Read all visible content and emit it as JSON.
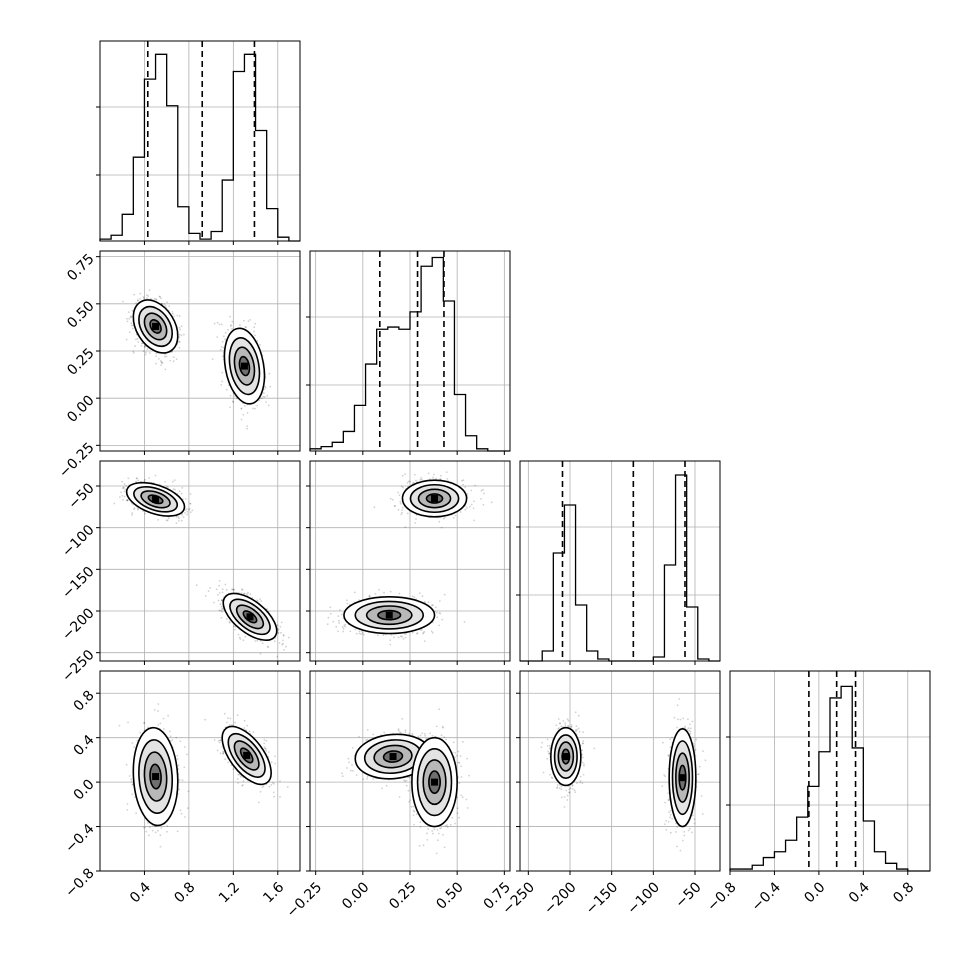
{
  "chart_data": {
    "type": "corner",
    "grid": true,
    "params": [
      {
        "range": [
          0.0,
          1.8
        ],
        "ticks": [
          0.4,
          0.8,
          1.2,
          1.6
        ],
        "tick_labels": [
          "0.4",
          "0.8",
          "1.2",
          "1.6"
        ]
      },
      {
        "range": [
          -0.28,
          0.78
        ],
        "ticks": [
          -0.25,
          0.0,
          0.25,
          0.5,
          0.75
        ],
        "tick_labels": [
          "−0.25",
          "0.00",
          "0.25",
          "0.50",
          "0.75"
        ]
      },
      {
        "range": [
          -260,
          -20
        ],
        "ticks": [
          -250,
          -200,
          -150,
          -100,
          -50
        ],
        "tick_labels": [
          "−250",
          "−200",
          "−150",
          "−100",
          "−50"
        ]
      },
      {
        "range": [
          -0.8,
          1.0
        ],
        "ticks": [
          -0.8,
          -0.4,
          0.0,
          0.4,
          0.8
        ],
        "tick_labels": [
          "−0.8",
          "−0.4",
          "0.0",
          "0.4",
          "0.8"
        ]
      }
    ],
    "histograms": [
      {
        "param": 0,
        "bin_edges_range": [
          0.0,
          1.8
        ],
        "counts": [
          1,
          3,
          14,
          44,
          85,
          98,
          71,
          18,
          4,
          1,
          5,
          32,
          89,
          98,
          58,
          17,
          2,
          0
        ],
        "quantile_lines": [
          0.43,
          0.92,
          1.39
        ],
        "max_count": 105
      },
      {
        "param": 1,
        "bin_edges_range": [
          -0.28,
          0.78
        ],
        "counts": [
          1,
          2,
          4,
          9,
          21,
          40,
          56,
          57,
          56,
          64,
          85,
          89,
          69,
          26,
          7,
          1,
          0,
          0
        ],
        "quantile_lines": [
          0.09,
          0.29,
          0.43
        ],
        "max_count": 92
      },
      {
        "param": 2,
        "bin_edges_range": [
          -260,
          -20
        ],
        "counts": [
          0,
          0,
          5,
          54,
          78,
          28,
          5,
          1,
          0,
          0,
          0,
          0,
          2,
          48,
          93,
          27,
          1,
          0
        ],
        "quantile_lines": [
          -209,
          -124,
          -62
        ],
        "max_count": 100
      },
      {
        "param": 3,
        "bin_edges_range": [
          -0.8,
          1.0
        ],
        "counts": [
          1,
          1,
          3,
          7,
          10,
          16,
          28,
          44,
          62,
          90,
          96,
          64,
          26,
          10,
          4,
          1,
          0,
          0
        ],
        "quantile_lines": [
          -0.09,
          0.16,
          0.33
        ],
        "max_count": 104
      }
    ],
    "scatter_panels": [
      {
        "x": 0,
        "y": 1,
        "clusters": [
          {
            "cx": 0.5,
            "cy": 0.38,
            "sx": 0.1,
            "sy": 0.07,
            "rho": -0.35,
            "n": 700
          },
          {
            "cx": 1.3,
            "cy": 0.17,
            "sx": 0.09,
            "sy": 0.1,
            "rho": -0.25,
            "n": 700
          }
        ]
      },
      {
        "x": 0,
        "y": 2,
        "clusters": [
          {
            "cx": 0.5,
            "cy": -66,
            "sx": 0.13,
            "sy": 10,
            "rho": -0.45,
            "n": 700
          },
          {
            "cx": 1.35,
            "cy": -207,
            "sx": 0.12,
            "sy": 14,
            "rho": -0.6,
            "n": 700
          }
        ]
      },
      {
        "x": 0,
        "y": 3,
        "clusters": [
          {
            "cx": 0.5,
            "cy": 0.05,
            "sx": 0.1,
            "sy": 0.22,
            "rho": -0.1,
            "n": 700
          },
          {
            "cx": 1.32,
            "cy": 0.24,
            "sx": 0.11,
            "sy": 0.13,
            "rho": -0.6,
            "n": 700
          }
        ]
      },
      {
        "x": 1,
        "y": 2,
        "clusters": [
          {
            "cx": 0.38,
            "cy": -65,
            "sx": 0.085,
            "sy": 11,
            "rho": 0.0,
            "n": 700
          },
          {
            "cx": 0.14,
            "cy": -205,
            "sx": 0.12,
            "sy": 11,
            "rho": 0.0,
            "n": 700
          }
        ]
      },
      {
        "x": 1,
        "y": 3,
        "clusters": [
          {
            "cx": 0.16,
            "cy": 0.23,
            "sx": 0.1,
            "sy": 0.1,
            "rho": 0.1,
            "n": 700
          },
          {
            "cx": 0.38,
            "cy": 0.0,
            "sx": 0.06,
            "sy": 0.2,
            "rho": 0.0,
            "n": 700
          }
        ]
      },
      {
        "x": 2,
        "y": 3,
        "clusters": [
          {
            "cx": -205,
            "cy": 0.23,
            "sx": 9,
            "sy": 0.13,
            "rho": 0.0,
            "n": 700
          },
          {
            "cx": -65,
            "cy": 0.04,
            "sx": 8,
            "sy": 0.22,
            "rho": 0.0,
            "n": 700
          }
        ]
      }
    ]
  }
}
